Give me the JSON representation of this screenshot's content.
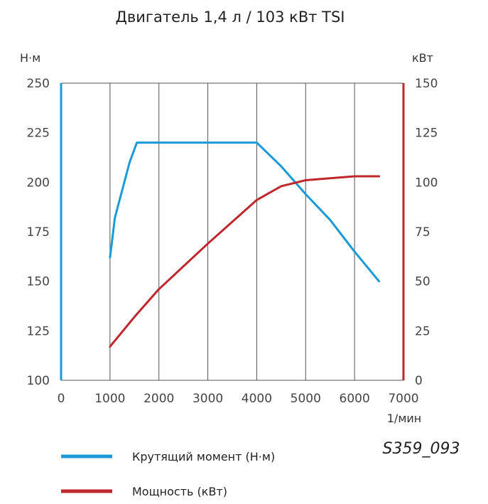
{
  "chart_data": {
    "type": "line",
    "title": "Двигатель 1,4 л / 103 кВт TSI",
    "xlabel": "1/мин",
    "ylabel_left": "Н·м",
    "ylabel_right": "кВт",
    "xlim": [
      0,
      7000
    ],
    "ylim_left": [
      100,
      250
    ],
    "ylim_right": [
      0,
      150
    ],
    "x_ticks": [
      "0",
      "1000",
      "2000",
      "3000",
      "4000",
      "5000",
      "6000",
      "7000"
    ],
    "y_left_ticks": [
      "100",
      "125",
      "150",
      "175",
      "200",
      "225",
      "250"
    ],
    "y_right_ticks": [
      "0",
      "25",
      "50",
      "75",
      "100",
      "125",
      "150"
    ],
    "grid": true,
    "legend_position": "bottom-left",
    "series": [
      {
        "name": "Крутящий момент (Н·м)",
        "axis": "left",
        "color": "#1a9bd7",
        "points": [
          [
            1000,
            162
          ],
          [
            1100,
            182
          ],
          [
            1400,
            210
          ],
          [
            1550,
            220
          ],
          [
            2000,
            220
          ],
          [
            3000,
            220
          ],
          [
            4000,
            220
          ],
          [
            4500,
            208
          ],
          [
            5000,
            194
          ],
          [
            5500,
            181
          ],
          [
            6000,
            165
          ],
          [
            6500,
            150
          ]
        ]
      },
      {
        "name": "Мощность (кВт)",
        "axis": "right",
        "color": "#c0272d",
        "points": [
          [
            1000,
            17
          ],
          [
            1500,
            32
          ],
          [
            2000,
            46
          ],
          [
            3000,
            69
          ],
          [
            4000,
            91
          ],
          [
            4500,
            98
          ],
          [
            5000,
            101
          ],
          [
            5500,
            102
          ],
          [
            6000,
            103
          ],
          [
            6500,
            103
          ]
        ]
      }
    ],
    "annotation": "S359_093"
  },
  "colors": {
    "axis_left": "#1a9bd7",
    "axis_right": "#c0272d",
    "grid": "#555555"
  }
}
